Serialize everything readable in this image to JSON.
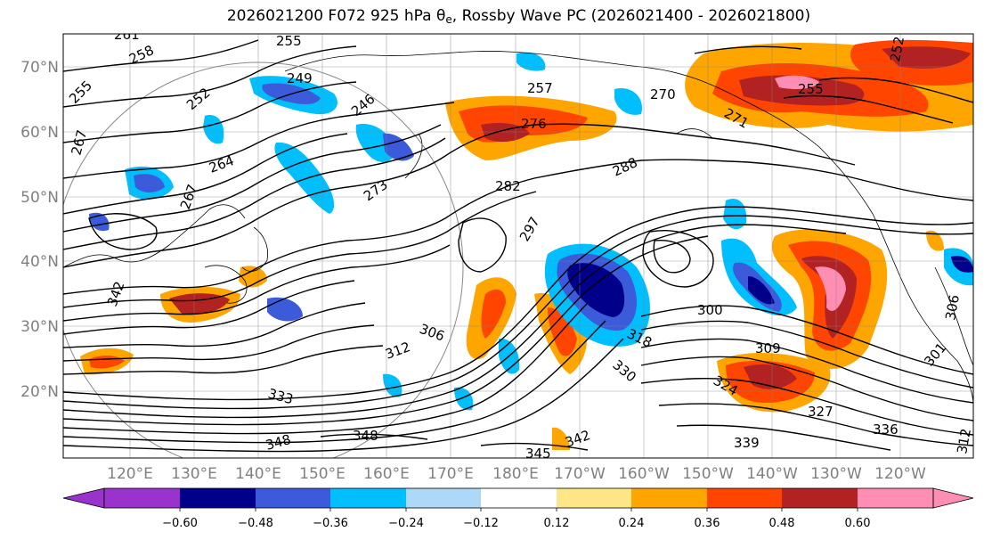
{
  "title": {
    "prefix": "2026021200 F072 925 hPa θ",
    "subscript": "e",
    "suffix": ", Rossby Wave PC (2026021400 - 2026021800)"
  },
  "latitude_labels": [
    "70°N",
    "60°N",
    "50°N",
    "40°N",
    "30°N",
    "20°N"
  ],
  "longitude_labels": [
    "120°E",
    "130°E",
    "140°E",
    "150°E",
    "160°E",
    "170°E",
    "180°E",
    "170°W",
    "160°W",
    "150°W",
    "140°W",
    "130°W",
    "120°W"
  ],
  "contour_labels": [
    "261",
    "258",
    "255",
    "249",
    "255",
    "252",
    "246",
    "257",
    "276",
    "270",
    "271",
    "255",
    "252",
    "267",
    "264",
    "267",
    "273",
    "282",
    "288",
    "297",
    "306",
    "312",
    "300",
    "309",
    "318",
    "330",
    "324",
    "327",
    "336",
    "333",
    "342",
    "348",
    "339",
    "348",
    "345",
    "342",
    "312",
    "306",
    "301"
  ],
  "colorbar": {
    "colors": [
      "#9933cc",
      "#00008b",
      "#3b5bdb",
      "#00bfff",
      "#add8f7",
      "#ffffff",
      "#ffe787",
      "#ffa500",
      "#ff4500",
      "#b22222",
      "#ff8eb4"
    ],
    "tick_labels": [
      "−0.60",
      "−0.48",
      "−0.36",
      "−0.24",
      "−0.12",
      "0.12",
      "0.24",
      "0.36",
      "0.48",
      "0.60"
    ]
  }
}
